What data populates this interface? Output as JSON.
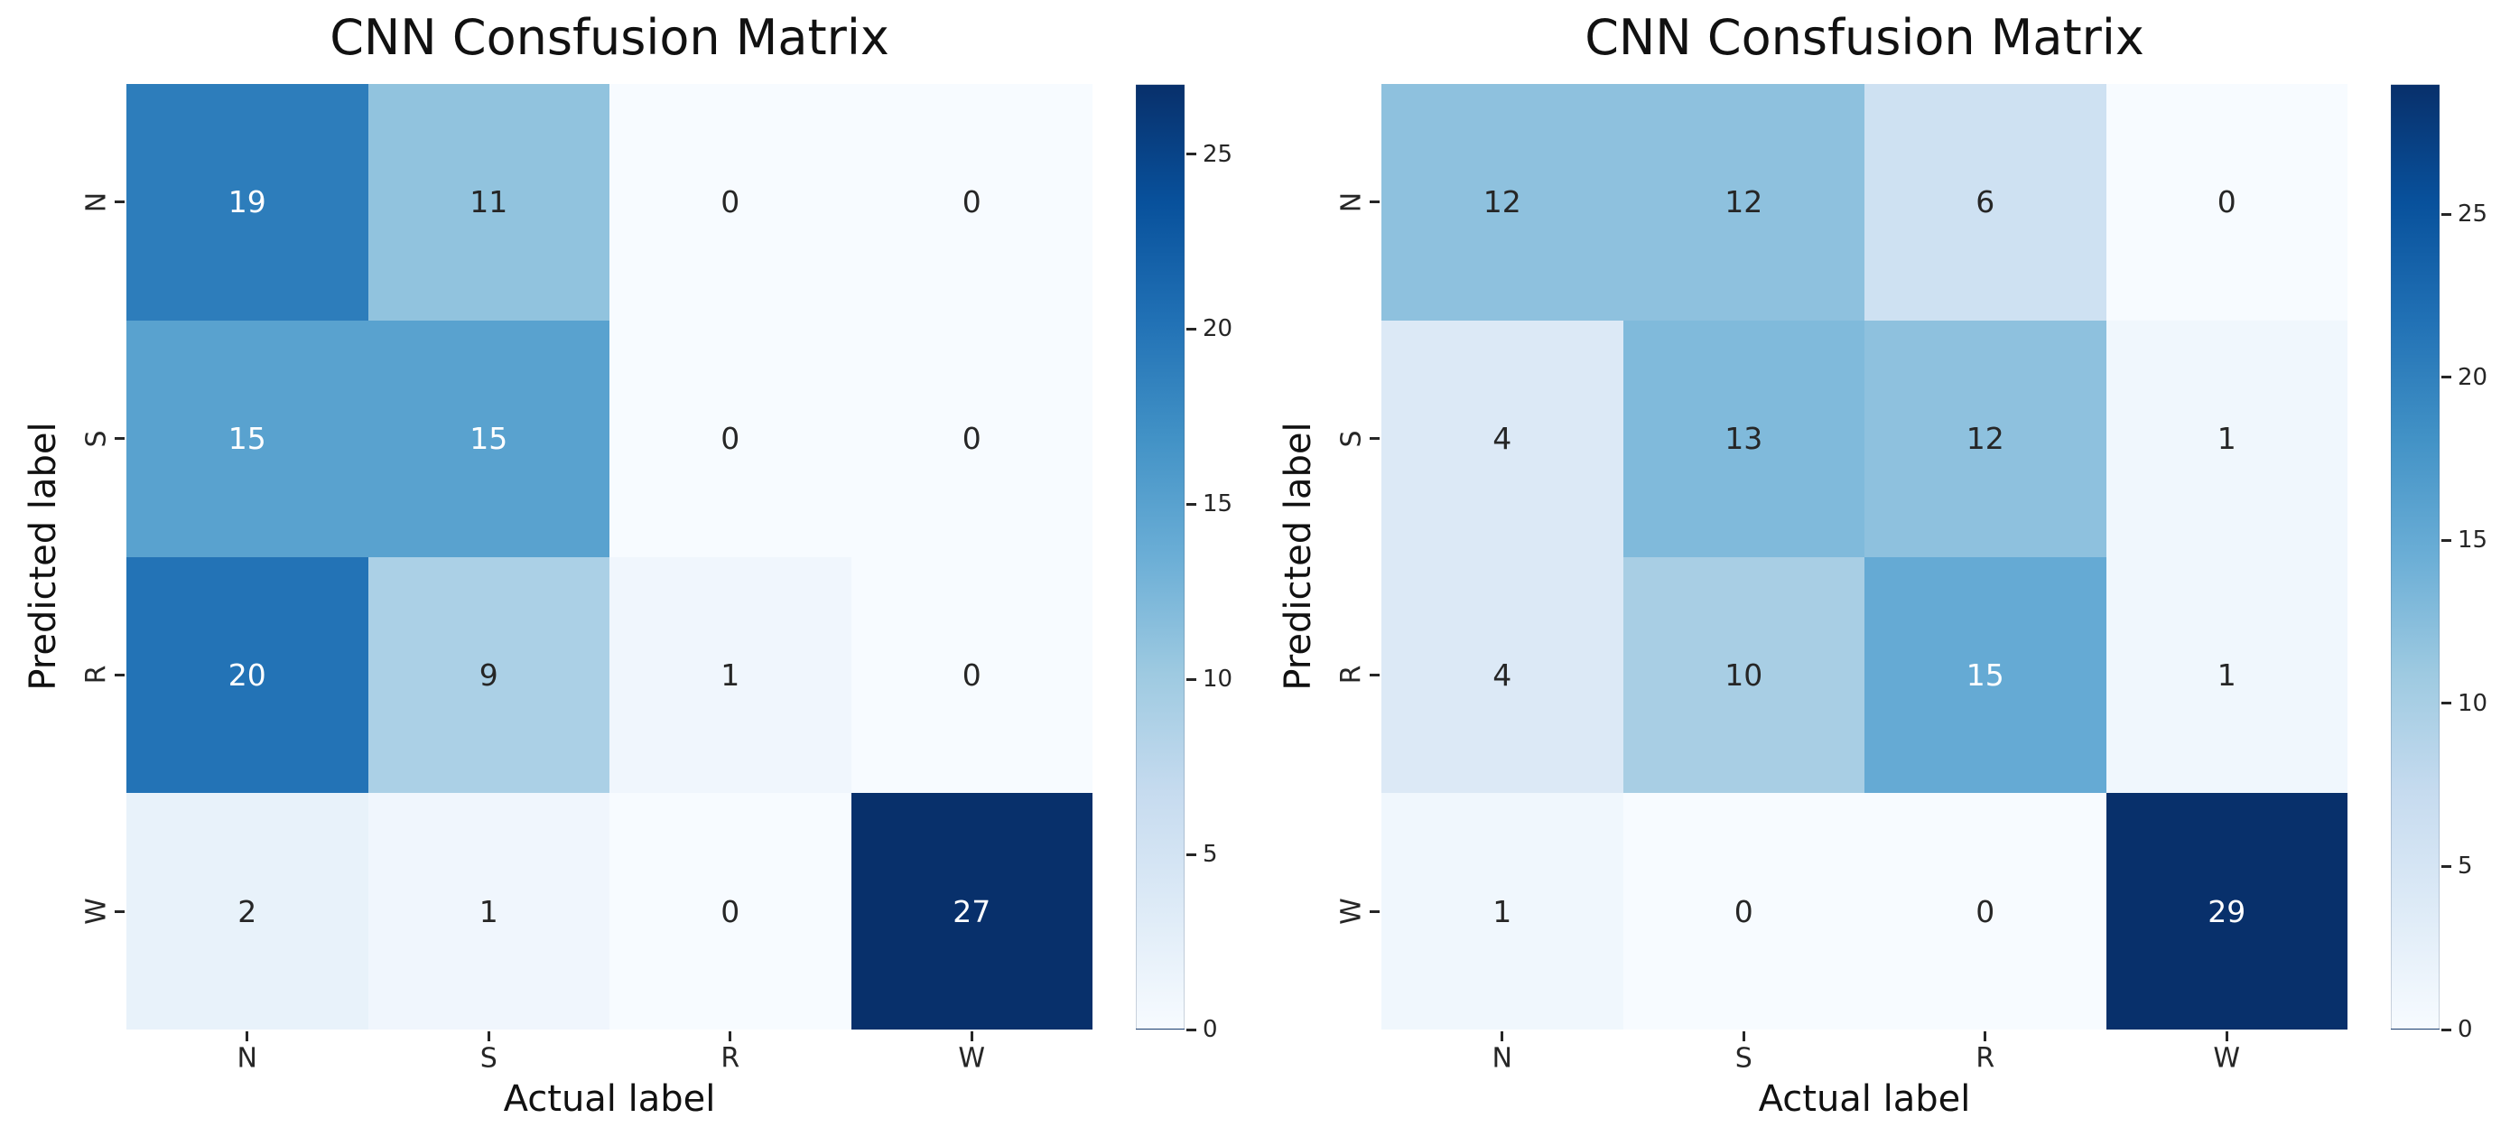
{
  "page": {
    "background": "#ffffff"
  },
  "colors": {
    "blues_anchors": [
      "#f7fbff",
      "#deebf7",
      "#c6dbef",
      "#9ecae1",
      "#6baed6",
      "#4292c6",
      "#2171b5",
      "#08519c",
      "#08306b"
    ],
    "annot_light": "#ffffff",
    "annot_dark": "#262626",
    "tick_color": "#262626",
    "title_color": "#111111"
  },
  "chart_data": [
    {
      "type": "heatmap",
      "title": "CNN Consfusion Matrix",
      "xlabel": "Actual label",
      "ylabel": "Predicted label",
      "x_ticklabels": [
        "N",
        "S",
        "R",
        "W"
      ],
      "y_ticklabels": [
        "N",
        "S",
        "R",
        "W"
      ],
      "rows": [
        [
          19,
          11,
          0,
          0
        ],
        [
          15,
          15,
          0,
          0
        ],
        [
          20,
          9,
          1,
          0
        ],
        [
          2,
          1,
          0,
          27
        ]
      ],
      "vmin": 0,
      "vmax": 27,
      "colormap": "Blues",
      "colorbar_ticks": [
        0,
        5,
        10,
        15,
        20,
        25
      ],
      "colorbar_position": "right",
      "grid": false,
      "annotations": true
    },
    {
      "type": "heatmap",
      "title": "CNN Consfusion Matrix",
      "xlabel": "Actual label",
      "ylabel": "Predicted label",
      "x_ticklabels": [
        "N",
        "S",
        "R",
        "W"
      ],
      "y_ticklabels": [
        "N",
        "S",
        "R",
        "W"
      ],
      "rows": [
        [
          12,
          12,
          6,
          0
        ],
        [
          4,
          13,
          12,
          1
        ],
        [
          4,
          10,
          15,
          1
        ],
        [
          1,
          0,
          0,
          29
        ]
      ],
      "vmin": 0,
      "vmax": 29,
      "colormap": "Blues",
      "colorbar_ticks": [
        0,
        5,
        10,
        15,
        20,
        25
      ],
      "colorbar_position": "right",
      "grid": false,
      "annotations": true
    }
  ]
}
